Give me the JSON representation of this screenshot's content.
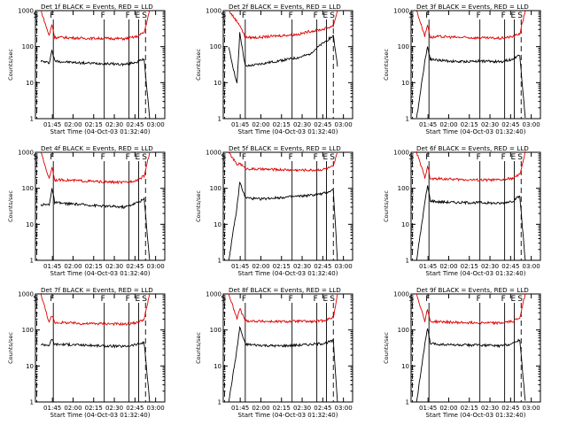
{
  "colors": {
    "events": "#000000",
    "lld": "#e00000",
    "axis": "#000000"
  },
  "panel_common": {
    "xlabel": "Start Time (04-Oct-03 01:32:40)",
    "ylabel": "Counts/sec",
    "x_tick_labels": [
      "01:45",
      "02:00",
      "02:15",
      "02:30",
      "02:45",
      "03:00"
    ],
    "y_tick_labels": [
      "1",
      "10",
      "100",
      "1000"
    ],
    "y_scale": "log",
    "ylim": [
      1,
      1000
    ],
    "xlim_minutes": [
      0,
      94
    ],
    "series": [
      {
        "name": "Events",
        "color": "#000000"
      },
      {
        "name": "LLD",
        "color": "#e00000"
      }
    ]
  },
  "chart_data": [
    {
      "type": "line",
      "title": "Det 1f BLACK = Events, RED = LLD",
      "x_minutes": [
        4,
        10,
        12,
        14,
        20,
        35,
        50,
        65,
        74,
        79,
        83
      ],
      "series": [
        {
          "name": "Events",
          "values": [
            40,
            35,
            80,
            40,
            38,
            35,
            34,
            32,
            38,
            45,
            1
          ]
        },
        {
          "name": "LLD",
          "values": [
            1000,
            200,
            420,
            180,
            180,
            170,
            170,
            165,
            190,
            250,
            1000
          ]
        }
      ],
      "markers": [
        {
          "label": "S",
          "x": 1,
          "style": "dashed"
        },
        {
          "label": "F",
          "x": 13,
          "style": "solid"
        },
        {
          "label": "F",
          "x": 50,
          "style": "solid"
        },
        {
          "label": "F",
          "x": 68,
          "style": "solid"
        },
        {
          "label": "E",
          "x": 75,
          "style": "solid"
        },
        {
          "label": "S",
          "x": 80,
          "style": "dashed"
        }
      ]
    },
    {
      "type": "line",
      "title": "Det 2f BLACK = Events, RED = LLD",
      "x_minutes": [
        4,
        10,
        12,
        16,
        25,
        40,
        55,
        62,
        72,
        80,
        83
      ],
      "series": [
        {
          "name": "Events",
          "values": [
            90,
            9,
            250,
            28,
            32,
            40,
            50,
            60,
            120,
            200,
            30
          ]
        },
        {
          "name": "LLD",
          "values": [
            1000,
            500,
            400,
            180,
            180,
            200,
            220,
            260,
            300,
            380,
            1000
          ]
        }
      ],
      "markers": [
        {
          "label": "S",
          "x": 1,
          "style": "dashed"
        },
        {
          "label": "F",
          "x": 16,
          "style": "solid"
        },
        {
          "label": "F",
          "x": 50,
          "style": "solid"
        },
        {
          "label": "F",
          "x": 68,
          "style": "solid"
        },
        {
          "label": "E",
          "x": 75,
          "style": "solid"
        },
        {
          "label": "S",
          "x": 80,
          "style": "dashed"
        }
      ]
    },
    {
      "type": "line",
      "title": "Det 3f BLACK = Events, RED = LLD",
      "x_minutes": [
        4,
        10,
        12,
        14,
        20,
        35,
        50,
        65,
        74,
        79,
        83
      ],
      "series": [
        {
          "name": "Events",
          "values": [
            1,
            40,
            100,
            45,
            42,
            38,
            40,
            38,
            45,
            60,
            1
          ]
        },
        {
          "name": "LLD",
          "values": [
            1000,
            200,
            400,
            180,
            190,
            180,
            175,
            170,
            190,
            230,
            1000
          ]
        }
      ],
      "markers": [
        {
          "label": "S",
          "x": 1,
          "style": "dashed"
        },
        {
          "label": "F",
          "x": 13,
          "style": "solid"
        },
        {
          "label": "F",
          "x": 50,
          "style": "solid"
        },
        {
          "label": "F",
          "x": 68,
          "style": "solid"
        },
        {
          "label": "E",
          "x": 75,
          "style": "solid"
        },
        {
          "label": "S",
          "x": 80,
          "style": "dashed"
        }
      ]
    },
    {
      "type": "line",
      "title": "Det 4f BLACK = Events, RED = LLD",
      "x_minutes": [
        4,
        10,
        12,
        14,
        20,
        35,
        50,
        65,
        74,
        79,
        83
      ],
      "series": [
        {
          "name": "Events",
          "values": [
            35,
            35,
            100,
            40,
            38,
            35,
            32,
            30,
            40,
            50,
            1
          ]
        },
        {
          "name": "LLD",
          "values": [
            1000,
            180,
            400,
            170,
            170,
            160,
            150,
            145,
            170,
            220,
            1000
          ]
        }
      ],
      "markers": [
        {
          "label": "S",
          "x": 1,
          "style": "dashed"
        },
        {
          "label": "F",
          "x": 13,
          "style": "solid"
        },
        {
          "label": "F",
          "x": 50,
          "style": "solid"
        },
        {
          "label": "F",
          "x": 68,
          "style": "solid"
        },
        {
          "label": "E",
          "x": 75,
          "style": "solid"
        },
        {
          "label": "S",
          "x": 80,
          "style": "dashed"
        }
      ]
    },
    {
      "type": "line",
      "title": "Det 5f BLACK = Events, RED = LLD",
      "x_minutes": [
        4,
        10,
        12,
        16,
        25,
        40,
        55,
        65,
        72,
        80,
        83
      ],
      "series": [
        {
          "name": "Events",
          "values": [
            1,
            30,
            150,
            55,
            50,
            55,
            60,
            65,
            70,
            90,
            1
          ]
        },
        {
          "name": "LLD",
          "values": [
            1000,
            450,
            500,
            350,
            340,
            330,
            320,
            320,
            330,
            400,
            1000
          ]
        }
      ],
      "markers": [
        {
          "label": "S",
          "x": 1,
          "style": "dashed"
        },
        {
          "label": "F",
          "x": 16,
          "style": "solid"
        },
        {
          "label": "F",
          "x": 50,
          "style": "solid"
        },
        {
          "label": "F",
          "x": 68,
          "style": "solid"
        },
        {
          "label": "E",
          "x": 75,
          "style": "solid"
        },
        {
          "label": "S",
          "x": 80,
          "style": "dashed"
        }
      ]
    },
    {
      "type": "line",
      "title": "Det 6f BLACK = Events, RED = LLD",
      "x_minutes": [
        4,
        10,
        12,
        14,
        20,
        35,
        50,
        65,
        74,
        79,
        83
      ],
      "series": [
        {
          "name": "Events",
          "values": [
            1,
            40,
            120,
            45,
            42,
            40,
            40,
            38,
            45,
            60,
            1
          ]
        },
        {
          "name": "LLD",
          "values": [
            1000,
            200,
            420,
            180,
            185,
            175,
            170,
            170,
            190,
            240,
            1000
          ]
        }
      ],
      "markers": [
        {
          "label": "S",
          "x": 1,
          "style": "dashed"
        },
        {
          "label": "F",
          "x": 13,
          "style": "solid"
        },
        {
          "label": "F",
          "x": 50,
          "style": "solid"
        },
        {
          "label": "F",
          "x": 68,
          "style": "solid"
        },
        {
          "label": "E",
          "x": 75,
          "style": "solid"
        },
        {
          "label": "S",
          "x": 80,
          "style": "dashed"
        }
      ]
    },
    {
      "type": "line",
      "title": "Det 7f BLACK = Events, RED = LLD",
      "x_minutes": [
        4,
        10,
        12,
        14,
        20,
        35,
        50,
        65,
        74,
        79,
        83
      ],
      "series": [
        {
          "name": "Events",
          "values": [
            40,
            38,
            55,
            40,
            40,
            38,
            36,
            35,
            40,
            45,
            1
          ]
        },
        {
          "name": "LLD",
          "values": [
            1000,
            160,
            250,
            160,
            160,
            150,
            150,
            145,
            160,
            200,
            1000
          ]
        }
      ],
      "markers": [
        {
          "label": "S",
          "x": 1,
          "style": "dashed"
        },
        {
          "label": "F",
          "x": 13,
          "style": "solid"
        },
        {
          "label": "F",
          "x": 50,
          "style": "solid"
        },
        {
          "label": "F",
          "x": 68,
          "style": "solid"
        },
        {
          "label": "E",
          "x": 75,
          "style": "solid"
        },
        {
          "label": "S",
          "x": 80,
          "style": "dashed"
        }
      ]
    },
    {
      "type": "line",
      "title": "Det 8f BLACK = Events, RED = LLD",
      "x_minutes": [
        4,
        10,
        12,
        16,
        25,
        40,
        55,
        65,
        72,
        80,
        83
      ],
      "series": [
        {
          "name": "Events",
          "values": [
            1,
            30,
            120,
            40,
            38,
            36,
            38,
            40,
            42,
            50,
            1
          ]
        },
        {
          "name": "LLD",
          "values": [
            1000,
            200,
            400,
            180,
            175,
            170,
            175,
            170,
            180,
            220,
            1000
          ]
        }
      ],
      "markers": [
        {
          "label": "S",
          "x": 1,
          "style": "dashed"
        },
        {
          "label": "F",
          "x": 16,
          "style": "solid"
        },
        {
          "label": "F",
          "x": 50,
          "style": "solid"
        },
        {
          "label": "F",
          "x": 68,
          "style": "solid"
        },
        {
          "label": "E",
          "x": 75,
          "style": "solid"
        },
        {
          "label": "S",
          "x": 80,
          "style": "dashed"
        }
      ]
    },
    {
      "type": "line",
      "title": "Det 9f BLACK = Events, RED = LLD",
      "x_minutes": [
        4,
        10,
        12,
        14,
        20,
        35,
        50,
        65,
        74,
        79,
        83
      ],
      "series": [
        {
          "name": "Events",
          "values": [
            1,
            40,
            110,
            42,
            40,
            38,
            38,
            36,
            42,
            55,
            1
          ]
        },
        {
          "name": "LLD",
          "values": [
            1000,
            180,
            380,
            170,
            170,
            160,
            160,
            155,
            175,
            220,
            1000
          ]
        }
      ],
      "markers": [
        {
          "label": "S",
          "x": 1,
          "style": "dashed"
        },
        {
          "label": "F",
          "x": 13,
          "style": "solid"
        },
        {
          "label": "F",
          "x": 50,
          "style": "solid"
        },
        {
          "label": "F",
          "x": 68,
          "style": "solid"
        },
        {
          "label": "E",
          "x": 75,
          "style": "solid"
        },
        {
          "label": "S",
          "x": 80,
          "style": "dashed"
        }
      ]
    }
  ]
}
